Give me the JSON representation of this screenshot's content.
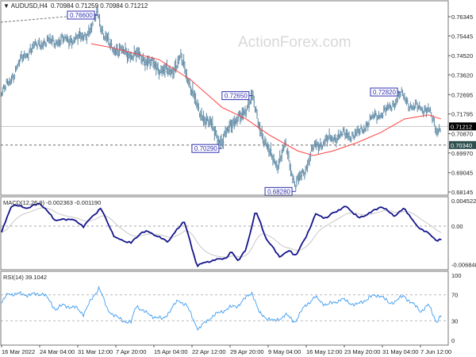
{
  "header": {
    "symbol_label": "▼ AUDUSD,H4",
    "ohlc": "0.70984 0.71259 0.70984 0.71212"
  },
  "watermark": "ActionForex.com",
  "colors": {
    "bars": "#5f8aa5",
    "ma": "#ff4040",
    "macd": "#14148c",
    "signal": "#c8c8c8",
    "rsi": "#3f9cf0",
    "current_price_box": "#000000",
    "level_box": "#2f4f4f"
  },
  "x_axis_labels": [
    "16 Mar 2022",
    "24 Mar 04:00",
    "31 Mar 12:00",
    "7 Apr 20:00",
    "15 Apr 04:00",
    "22 Apr 12:00",
    "29 Apr 20:00",
    "9 May 04:00",
    "16 May 12:00",
    "23 May 20:00",
    "31 May 04:00",
    "7 Jun 12:00"
  ],
  "chart_data": [
    {
      "type": "ohlc",
      "title": "AUDUSD,H4",
      "y_ticks": [
        "0.76345",
        "0.75445",
        "0.74520",
        "0.73620",
        "0.72695",
        "0.71795",
        "0.70870",
        "0.69970",
        "0.69045",
        "0.68145"
      ],
      "ylim": [
        0.68145,
        0.76345
      ],
      "current_price": "0.71212",
      "support_level": "0.70340",
      "annotations": [
        {
          "text": "0.76600",
          "t": 2.52,
          "price": 0.766
        },
        {
          "text": "0.72650",
          "t": 6.58,
          "price": 0.7265
        },
        {
          "text": "0.70290",
          "t": 5.79,
          "price": 0.7029
        },
        {
          "text": "0.68280",
          "t": 7.71,
          "price": 0.6828
        },
        {
          "text": "0.72820",
          "t": 10.48,
          "price": 0.7282
        }
      ],
      "close": [
        [
          0,
          0.727
        ],
        [
          0.27,
          0.735
        ],
        [
          0.58,
          0.745
        ],
        [
          1,
          0.751
        ],
        [
          1.52,
          0.752
        ],
        [
          2.04,
          0.753
        ],
        [
          2.35,
          0.757
        ],
        [
          2.52,
          0.766
        ],
        [
          2.67,
          0.755
        ],
        [
          2.88,
          0.749
        ],
        [
          3.29,
          0.746
        ],
        [
          3.6,
          0.745
        ],
        [
          4.13,
          0.739
        ],
        [
          4.44,
          0.737
        ],
        [
          4.71,
          0.744
        ],
        [
          4.96,
          0.731
        ],
        [
          5.17,
          0.719
        ],
        [
          5.48,
          0.713
        ],
        [
          5.79,
          0.704
        ],
        [
          6.04,
          0.714
        ],
        [
          6.31,
          0.716
        ],
        [
          6.58,
          0.7265
        ],
        [
          6.73,
          0.714
        ],
        [
          7.04,
          0.699
        ],
        [
          7.25,
          0.694
        ],
        [
          7.46,
          0.703
        ],
        [
          7.71,
          0.684
        ],
        [
          7.98,
          0.692
        ],
        [
          8.19,
          0.702
        ],
        [
          8.5,
          0.705
        ],
        [
          8.92,
          0.708
        ],
        [
          9.33,
          0.708
        ],
        [
          9.75,
          0.716
        ],
        [
          10.17,
          0.72
        ],
        [
          10.48,
          0.727
        ],
        [
          10.79,
          0.721
        ],
        [
          11.21,
          0.72
        ],
        [
          11.42,
          0.71
        ],
        [
          11.54,
          0.712
        ]
      ],
      "moving_average": [
        [
          2.35,
          0.7508
        ],
        [
          2.88,
          0.749
        ],
        [
          4.13,
          0.7434
        ],
        [
          4.96,
          0.734
        ],
        [
          5.79,
          0.721
        ],
        [
          6.42,
          0.7156
        ],
        [
          7.04,
          0.708
        ],
        [
          7.77,
          0.7007
        ],
        [
          8.19,
          0.6985
        ],
        [
          8.71,
          0.7007
        ],
        [
          9.33,
          0.7045
        ],
        [
          9.96,
          0.7093
        ],
        [
          10.58,
          0.7156
        ],
        [
          11.21,
          0.7175
        ],
        [
          11.54,
          0.7156
        ]
      ]
    },
    {
      "type": "line",
      "title": "MACD(12,26,9) -0.002363 -0.001190",
      "y_ticks": [
        "0.004522",
        "0.00",
        "-0.006848"
      ],
      "ylim": [
        -0.006848,
        0.004522
      ],
      "macd": [
        [
          0,
          -0.0011
        ],
        [
          0.27,
          0.0038
        ],
        [
          0.69,
          0.0032
        ],
        [
          1,
          0.0041
        ],
        [
          1.42,
          0.001
        ],
        [
          1.83,
          0.0013
        ],
        [
          2.15,
          0
        ],
        [
          2.6,
          0.0032
        ],
        [
          2.98,
          -0.0021
        ],
        [
          3.4,
          -0.003
        ],
        [
          3.67,
          -0.0011
        ],
        [
          3.88,
          -0.001
        ],
        [
          4.13,
          -0.002
        ],
        [
          4.38,
          -0.0027
        ],
        [
          4.79,
          0.001
        ],
        [
          5.13,
          -0.007
        ],
        [
          5.42,
          -0.0063
        ],
        [
          5.9,
          -0.0056
        ],
        [
          6.04,
          -0.0046
        ],
        [
          6.21,
          -0.0061
        ],
        [
          6.42,
          -0.0042
        ],
        [
          6.67,
          0.0028
        ],
        [
          6.94,
          -0.0021
        ],
        [
          7.29,
          -0.0054
        ],
        [
          7.56,
          -0.0044
        ],
        [
          7.73,
          -0.0052
        ],
        [
          7.98,
          -0.0021
        ],
        [
          8.25,
          0.0021
        ],
        [
          8.54,
          0.0014
        ],
        [
          8.71,
          0.0024
        ],
        [
          9.06,
          0.0035
        ],
        [
          9.38,
          0.0014
        ],
        [
          9.69,
          0.0024
        ],
        [
          9.96,
          0.0035
        ],
        [
          10.33,
          0.0018
        ],
        [
          10.58,
          0.0032
        ],
        [
          10.9,
          0
        ],
        [
          11.15,
          -0.001
        ],
        [
          11.42,
          -0.0025
        ],
        [
          11.56,
          -0.0024
        ]
      ]
    },
    {
      "type": "line",
      "title": "RSI(14) 39.1042",
      "y_ticks": [
        "100",
        "70",
        "30",
        "0"
      ],
      "ylim": [
        0,
        100
      ],
      "levels": [
        70,
        30
      ],
      "rsi": [
        [
          0,
          57
        ],
        [
          0.17,
          72
        ],
        [
          0.79,
          70
        ],
        [
          1.1,
          72
        ],
        [
          1.42,
          48
        ],
        [
          1.63,
          54
        ],
        [
          1.94,
          50
        ],
        [
          2.15,
          41
        ],
        [
          2.56,
          82
        ],
        [
          2.77,
          48
        ],
        [
          3.08,
          33
        ],
        [
          3.4,
          27
        ],
        [
          3.54,
          54
        ],
        [
          3.81,
          41
        ],
        [
          4.23,
          32
        ],
        [
          4.65,
          62
        ],
        [
          4.85,
          54
        ],
        [
          5.17,
          17
        ],
        [
          5.48,
          35
        ],
        [
          5.9,
          48
        ],
        [
          6.21,
          54
        ],
        [
          6.58,
          74
        ],
        [
          6.77,
          41
        ],
        [
          7.15,
          29
        ],
        [
          7.46,
          39
        ],
        [
          7.71,
          29
        ],
        [
          7.98,
          54
        ],
        [
          8.23,
          66
        ],
        [
          8.54,
          54
        ],
        [
          8.92,
          63
        ],
        [
          9.33,
          54
        ],
        [
          9.65,
          66
        ],
        [
          9.96,
          70
        ],
        [
          10.17,
          56
        ],
        [
          10.58,
          68
        ],
        [
          11,
          45
        ],
        [
          11.21,
          54
        ],
        [
          11.42,
          29
        ],
        [
          11.56,
          39
        ]
      ]
    }
  ]
}
